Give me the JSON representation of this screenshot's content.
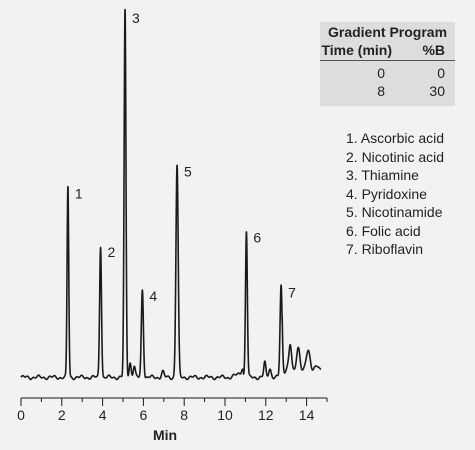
{
  "gradient_program": {
    "title": "Gradient Program",
    "col_time": "Time (min)",
    "col_b": "%B",
    "rows": [
      {
        "time": "0",
        "b": "0"
      },
      {
        "time": "8",
        "b": "30"
      }
    ]
  },
  "legend": [
    "1. Ascorbic acid",
    "2. Nicotinic acid",
    "3. Thiamine",
    "4. Pyridoxine",
    "5. Nicotinamide",
    "6. Folic acid",
    "7. Riboflavin"
  ],
  "chart_data": {
    "type": "line",
    "xlabel": "Min",
    "ylabel": "",
    "title": "",
    "xlim": [
      0,
      15
    ],
    "xticks": [
      0,
      2,
      4,
      6,
      8,
      10,
      12,
      14
    ],
    "ylim": [
      0,
      100
    ],
    "yaxis_visible": false,
    "grid": false,
    "line_color": "#1a1a1a",
    "baseline": 1.0,
    "peaks": [
      {
        "label": "1",
        "x": 2.3,
        "height": 52,
        "width": 0.04
      },
      {
        "label": "2",
        "x": 3.9,
        "height": 36,
        "width": 0.045
      },
      {
        "label": "3",
        "x": 5.1,
        "height": 100,
        "width": 0.045
      },
      {
        "label": "4",
        "x": 5.95,
        "height": 24,
        "width": 0.05
      },
      {
        "label": "5",
        "x": 7.65,
        "height": 58,
        "width": 0.055
      },
      {
        "label": "6",
        "x": 11.05,
        "height": 40,
        "width": 0.045
      },
      {
        "label": "7",
        "x": 12.75,
        "height": 25,
        "width": 0.05
      }
    ],
    "minor_peaks": [
      {
        "x": 5.35,
        "height": 4,
        "width": 0.05
      },
      {
        "x": 5.55,
        "height": 3,
        "width": 0.05
      },
      {
        "x": 6.95,
        "height": 1.5,
        "width": 0.06
      },
      {
        "x": 10.85,
        "height": 1.5,
        "width": 0.05
      },
      {
        "x": 11.95,
        "height": 4,
        "width": 0.05
      },
      {
        "x": 12.2,
        "height": 2.5,
        "width": 0.06
      },
      {
        "x": 13.2,
        "height": 6,
        "width": 0.06
      },
      {
        "x": 13.6,
        "height": 5,
        "width": 0.08
      },
      {
        "x": 14.1,
        "height": 4,
        "width": 0.1
      }
    ]
  }
}
